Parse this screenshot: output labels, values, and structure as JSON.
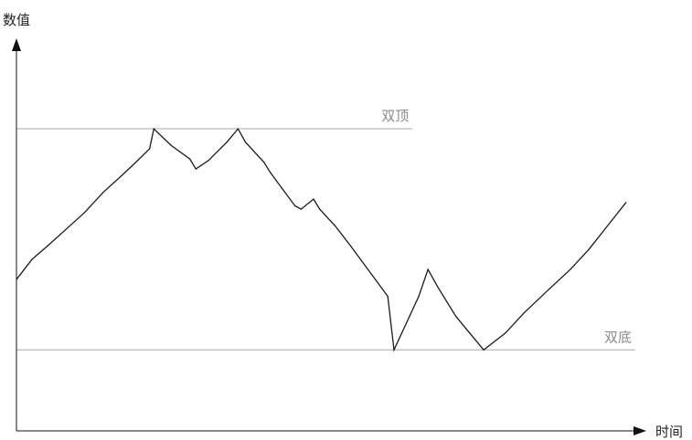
{
  "chart_data": {
    "type": "line",
    "ylabel": "数值",
    "xlabel": "时间",
    "x_range": [
      0,
      100
    ],
    "y_range": [
      0,
      100
    ],
    "grid": false,
    "ticks_shown": false,
    "reference_lines": [
      {
        "label": "双顶",
        "y": 82,
        "x_start": 0,
        "x_end": 64,
        "color": "#a8a8a8"
      },
      {
        "label": "双底",
        "y": 16,
        "x_start": 0,
        "x_end": 100,
        "color": "#a8a8a8"
      }
    ],
    "series": [
      {
        "color": "#1a1a1a",
        "points": [
          [
            0,
            37
          ],
          [
            2.5,
            43
          ],
          [
            5,
            47
          ],
          [
            8,
            52
          ],
          [
            11,
            57
          ],
          [
            14,
            63
          ],
          [
            17,
            68
          ],
          [
            19,
            71.5
          ],
          [
            21.5,
            76
          ],
          [
            22.2,
            82
          ],
          [
            25,
            77
          ],
          [
            28,
            73
          ],
          [
            29,
            70
          ],
          [
            31,
            72.5
          ],
          [
            34,
            78
          ],
          [
            35.8,
            82
          ],
          [
            37,
            78
          ],
          [
            40,
            72
          ],
          [
            41,
            69
          ],
          [
            43,
            64
          ],
          [
            45,
            59
          ],
          [
            46,
            58
          ],
          [
            48,
            61
          ],
          [
            49,
            58
          ],
          [
            51.5,
            53
          ],
          [
            54,
            47
          ],
          [
            60,
            32
          ],
          [
            61,
            16
          ],
          [
            65,
            32
          ],
          [
            66.5,
            40
          ],
          [
            68,
            35
          ],
          [
            71,
            26
          ],
          [
            75.5,
            16
          ],
          [
            79,
            21
          ],
          [
            82,
            27
          ],
          [
            86,
            34
          ],
          [
            89.5,
            40
          ],
          [
            92.5,
            46
          ],
          [
            95.5,
            53
          ],
          [
            98.5,
            60
          ]
        ]
      }
    ],
    "colors": {
      "axis": "#111111",
      "series": "#1a1a1a",
      "reference": "#a8a8a8"
    }
  }
}
